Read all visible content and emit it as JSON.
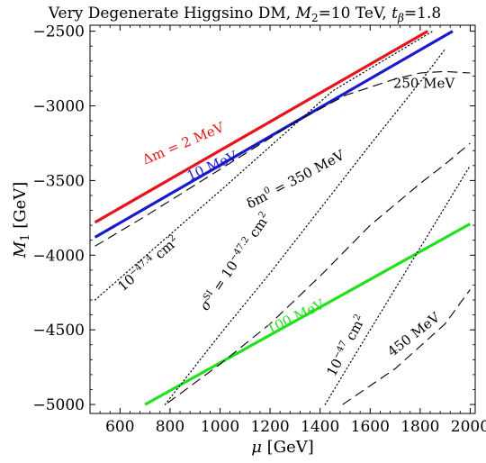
{
  "chart_data": {
    "type": "line",
    "title": "Very Degenerate Higgsino DM, M₂=10 TeV, tβ=1.8",
    "title_parts": {
      "main": "Very Degenerate Higgsino DM, ",
      "m2_sym": "M",
      "m2_sub": "2",
      "m2_val": "=10 TeV, ",
      "tb_sym": "t",
      "tb_sub": "β",
      "tb_val": "=1.8"
    },
    "xlabel": "μ [GeV]",
    "xlabel_parts": {
      "sym": "μ",
      "unit": " [GeV]"
    },
    "ylabel": "M1 [GeV]",
    "ylabel_parts": {
      "sym": "M",
      "sub": "1",
      "unit": " [GeV]"
    },
    "xlim": [
      480,
      2020
    ],
    "ylim": [
      -5060,
      -2460
    ],
    "xticks": [
      600,
      800,
      1000,
      1200,
      1400,
      1600,
      1800,
      2000
    ],
    "yticks": [
      -5000,
      -4500,
      -4000,
      -3500,
      -3000,
      -2500
    ],
    "xtick_labels": [
      "600",
      "800",
      "1000",
      "1200",
      "1400",
      "1600",
      "1800",
      "2000"
    ],
    "ytick_labels": [
      "−5000",
      "−4500",
      "−4000",
      "−3500",
      "−3000",
      "−2500"
    ],
    "grid": false,
    "series": [
      {
        "name": "Δm = 2 MeV",
        "style": "solid",
        "color": "#e8141c",
        "x": [
          500,
          1830
        ],
        "y": [
          -3780,
          -2500
        ]
      },
      {
        "name": "10 MeV",
        "style": "solid",
        "color": "#1a1acc",
        "x": [
          500,
          1930
        ],
        "y": [
          -3880,
          -2500
        ]
      },
      {
        "name": "100 MeV",
        "style": "solid",
        "color": "#22e01e",
        "x": [
          700,
          2000
        ],
        "y": [
          -5000,
          -3790
        ]
      },
      {
        "name": "250 MeV",
        "style": "dashed",
        "color": "#000000",
        "x": [
          500,
          700,
          900,
          1100,
          1300,
          1500,
          1700,
          1800,
          1900,
          2000
        ],
        "y": [
          -3940,
          -3740,
          -3530,
          -3320,
          -3110,
          -2930,
          -2820,
          -2780,
          -2770,
          -2780
        ]
      },
      {
        "name": "δm⁰ = 350 MeV",
        "style": "dashed",
        "color": "#000000",
        "x": [
          790,
          1000,
          1200,
          1400,
          1600,
          1800,
          1900,
          2000
        ],
        "y": [
          -4990,
          -4730,
          -4460,
          -4140,
          -3800,
          -3520,
          -3390,
          -3250
        ]
      },
      {
        "name": "450 MeV",
        "style": "dashed",
        "color": "#000000",
        "x": [
          1490,
          1700,
          1900,
          2000
        ],
        "y": [
          -5000,
          -4760,
          -4460,
          -4230
        ]
      },
      {
        "name": "10⁻⁴⁷·⁴ cm²",
        "style": "dotted",
        "color": "#000000",
        "x": [
          500,
          1000,
          1450,
          1850
        ],
        "y": [
          -4300,
          -3570,
          -2900,
          -2500
        ]
      },
      {
        "name": "σˢᴵ = 10⁻⁴⁷·² cm²",
        "style": "dotted",
        "color": "#000000",
        "x": [
          780,
          1000,
          1200,
          1400,
          1600,
          1800,
          1900
        ],
        "y": [
          -5000,
          -4530,
          -4120,
          -3690,
          -3260,
          -2840,
          -2620
        ]
      },
      {
        "name": "10⁻⁴⁷ cm²",
        "style": "dotted",
        "color": "#000000",
        "x": [
          1420,
          1600,
          1800,
          2000
        ],
        "y": [
          -5000,
          -4500,
          -3950,
          -3400
        ]
      }
    ],
    "annotations": [
      {
        "text": "Δm = 2 MeV",
        "color": "#e8141c",
        "x": 860,
        "y": -3280,
        "angle": -23
      },
      {
        "text": "10 MeV",
        "color": "#1a1acc",
        "x": 975,
        "y": -3430,
        "angle": -24
      },
      {
        "text": "100 MeV",
        "color": "#22e01e",
        "x": 1310,
        "y": -4440,
        "angle": -26
      },
      {
        "text": "250 MeV",
        "color": "#000000",
        "x": 1815,
        "y": -2880,
        "angle": 0
      },
      {
        "text": "δm⁰ = 350 MeV",
        "color": "#000000",
        "x": 1310,
        "y": -3520,
        "angle": -28,
        "parts": {
          "sym": "δm",
          "sup": "0",
          "rest": " = 350 MeV"
        }
      },
      {
        "text": "450 MeV",
        "color": "#000000",
        "x": 1785,
        "y": -4555,
        "angle": -38
      },
      {
        "text": "10⁻⁴⁷·⁴ cm²",
        "color": "#000000",
        "x": 725,
        "y": -4080,
        "angle": -41,
        "parts": {
          "base": "10",
          "exp": "−47.4",
          "unit": " cm",
          "unit_exp": "2"
        }
      },
      {
        "text": "σˢᴵ = 10⁻⁴⁷·² cm²",
        "color": "#000000",
        "x": 1075,
        "y": -4060,
        "angle": -56,
        "parts": {
          "sym": "σ",
          "sup": "SI",
          "mid": " = 10",
          "exp": "−47.2",
          "unit": " cm",
          "unit_exp": "2"
        }
      },
      {
        "text": "10⁻⁴⁷ cm²",
        "color": "#000000",
        "x": 1520,
        "y": -4620,
        "angle": -62,
        "parts": {
          "base": "10",
          "exp": "−47",
          "unit": " cm",
          "unit_exp": "2"
        }
      }
    ]
  }
}
